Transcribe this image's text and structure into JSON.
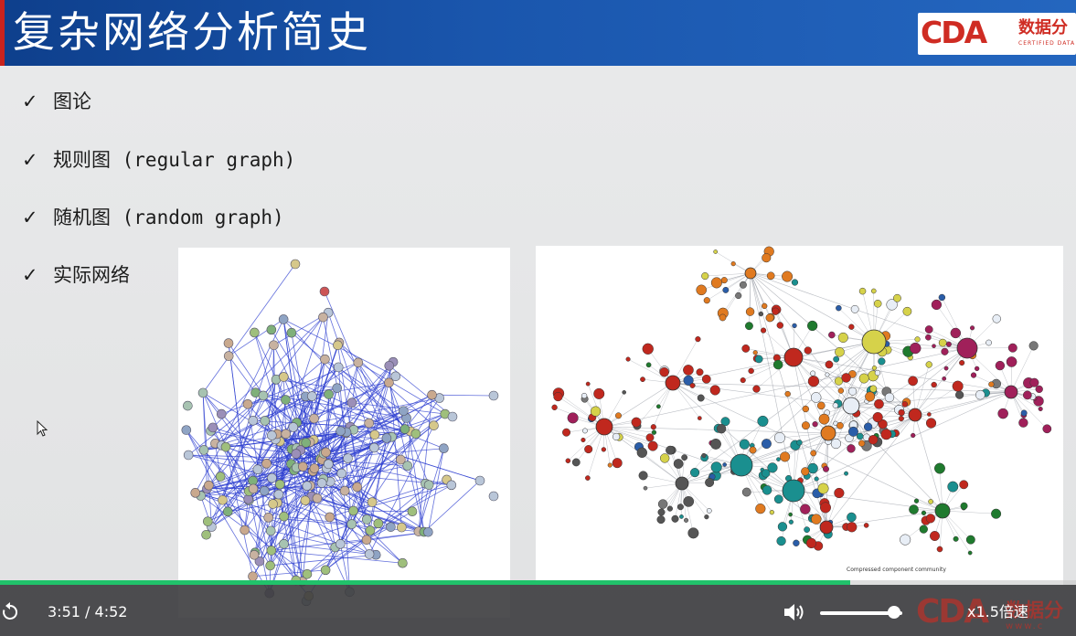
{
  "slide": {
    "title": "复杂网络分析简史",
    "logo": {
      "mark": "CDA",
      "text": "数据分",
      "subtext": "CERTIFIED DATA"
    },
    "bullets": [
      {
        "check": "✓",
        "label": "图论"
      },
      {
        "check": "✓",
        "label": "规则图 (regular graph)"
      },
      {
        "check": "✓",
        "label": "随机图 (random graph)"
      },
      {
        "check": "✓",
        "label": "实际网络"
      }
    ],
    "figure_right_caption": "Compressed component community"
  },
  "player": {
    "current_time": "3:51",
    "separator": "/",
    "duration": "4:52",
    "progress": 0.79,
    "volume": 0.9,
    "speed_label": "x1.5倍速",
    "watermark": {
      "mark": "CDA",
      "text": "数据分",
      "url": "www.c"
    },
    "accent_color": "#21c26b"
  },
  "colors": {
    "title_bar": "#1a56ad",
    "brand_red": "#cf2c23"
  }
}
